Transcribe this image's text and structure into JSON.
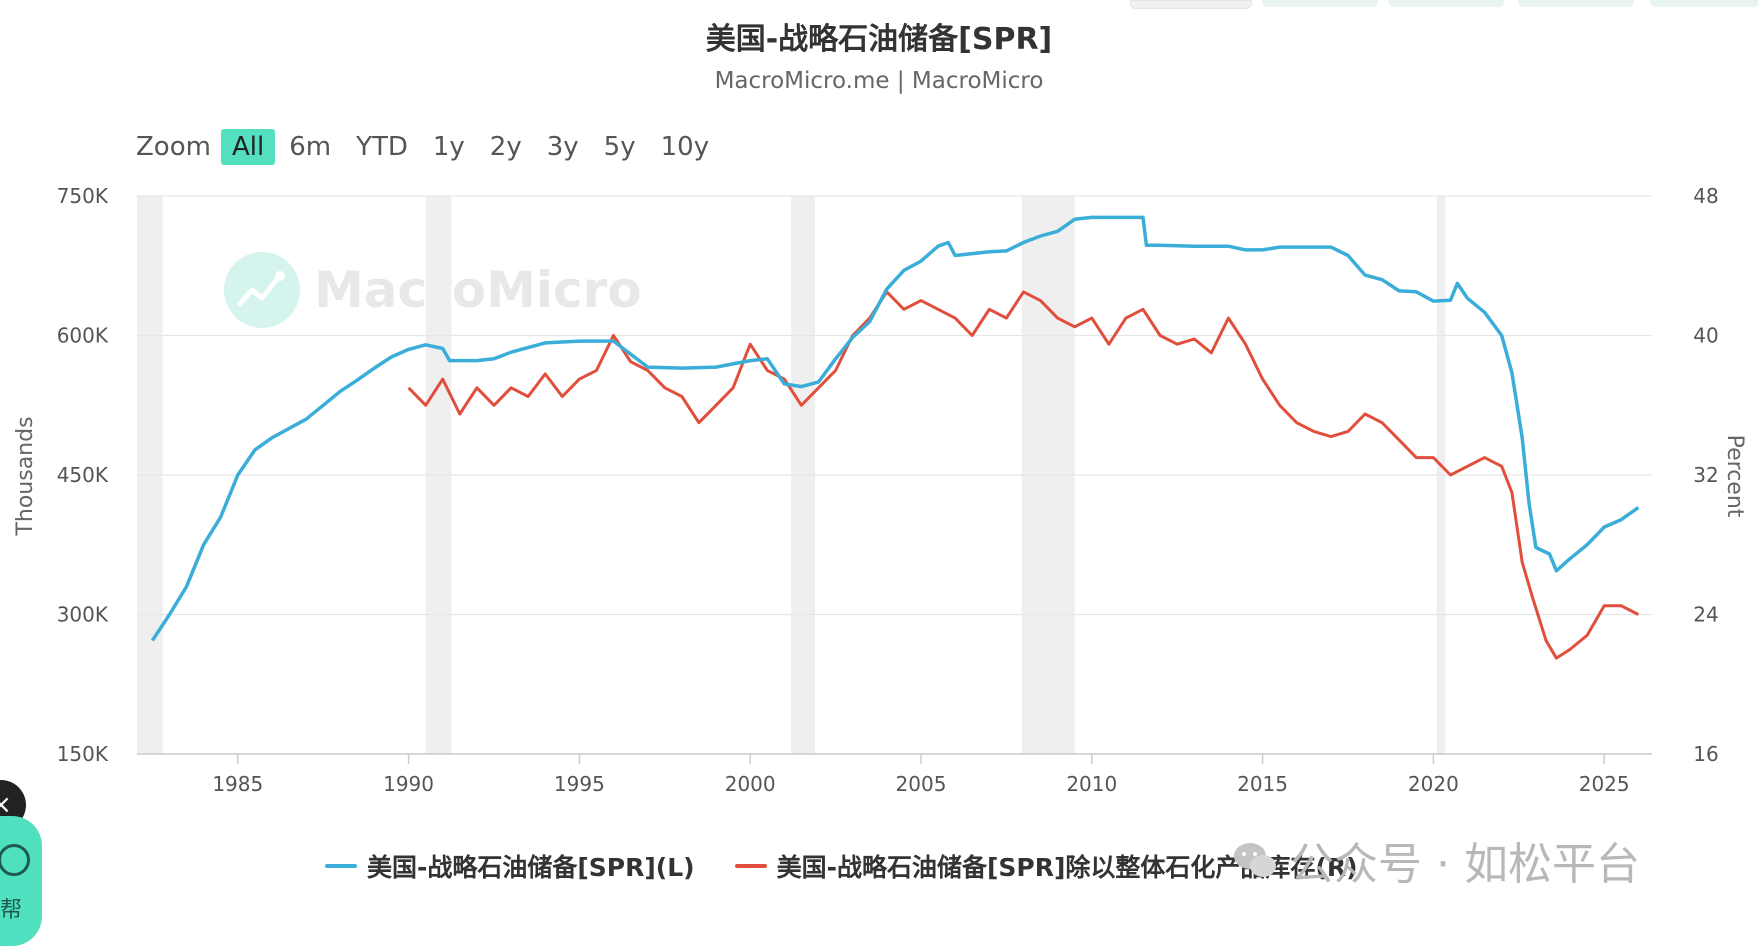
{
  "header": {
    "title": "美国-战略石油储备[SPR]",
    "subtitle": "MacroMicro.me | MacroMicro"
  },
  "zoom": {
    "label": "Zoom",
    "buttons": [
      "All",
      "6m",
      "YTD",
      "1y",
      "2y",
      "3y",
      "5y",
      "10y"
    ],
    "active": "All"
  },
  "watermark": {
    "text": "MacroMicro"
  },
  "wechat": {
    "text": "公众号 · 如松平台"
  },
  "sidebar": {
    "close_label": "×",
    "help_label": "帮"
  },
  "colors": {
    "left_series": "#3aaed8",
    "right_series": "#e14f3c",
    "recession": "#efefef",
    "grid": "#e6e6e6"
  },
  "chart_data": {
    "type": "line",
    "title": "美国-战略石油储备[SPR]",
    "subtitle": "MacroMicro.me | MacroMicro",
    "x_ticks": [
      1985,
      1990,
      1995,
      2000,
      2005,
      2010,
      2015,
      2020,
      2025
    ],
    "xlim": [
      1982.05,
      2026.4
    ],
    "left_axis": {
      "title": "Thousands",
      "ylim": [
        150,
        750
      ],
      "ticks": [
        150,
        300,
        450,
        600,
        750
      ],
      "tick_labels": [
        "150K",
        "300K",
        "450K",
        "600K",
        "750K"
      ]
    },
    "right_axis": {
      "title": "Percent",
      "ylim": [
        16,
        48
      ],
      "ticks": [
        16,
        24,
        32,
        40,
        48
      ],
      "tick_labels": [
        "16",
        "24",
        "32",
        "40",
        "48"
      ]
    },
    "recessions": [
      [
        1982.0,
        1982.8
      ],
      [
        1990.5,
        1991.25
      ],
      [
        2001.2,
        2001.9
      ],
      [
        2007.95,
        2009.5
      ],
      [
        2020.1,
        2020.35
      ]
    ],
    "legend": [
      "美国-战略石油储备[SPR](L)",
      "美国-战略石油储备[SPR]除以整体石化产品库存(R)"
    ],
    "series": [
      {
        "name": "美国-战略石油储备[SPR](L)",
        "axis": "left",
        "points": [
          [
            1982.5,
            272
          ],
          [
            1983,
            300
          ],
          [
            1983.5,
            330
          ],
          [
            1984,
            375
          ],
          [
            1984.5,
            405
          ],
          [
            1985,
            450
          ],
          [
            1985.5,
            477
          ],
          [
            1986,
            490
          ],
          [
            1986.5,
            500
          ],
          [
            1987,
            510
          ],
          [
            1987.5,
            525
          ],
          [
            1988,
            540
          ],
          [
            1988.5,
            552
          ],
          [
            1989,
            565
          ],
          [
            1989.5,
            577
          ],
          [
            1990,
            585
          ],
          [
            1990.5,
            590
          ],
          [
            1991,
            586
          ],
          [
            1991.2,
            573
          ],
          [
            1992,
            573
          ],
          [
            1992.5,
            575
          ],
          [
            1993,
            582
          ],
          [
            1993.5,
            587
          ],
          [
            1994,
            592
          ],
          [
            1995,
            594
          ],
          [
            1996,
            594
          ],
          [
            1996.5,
            580
          ],
          [
            1997,
            566
          ],
          [
            1998,
            565
          ],
          [
            1999,
            566
          ],
          [
            2000,
            573
          ],
          [
            2000.5,
            575
          ],
          [
            2001,
            548
          ],
          [
            2001.5,
            545
          ],
          [
            2002,
            550
          ],
          [
            2002.5,
            575
          ],
          [
            2003,
            598
          ],
          [
            2003.5,
            615
          ],
          [
            2004,
            650
          ],
          [
            2004.5,
            670
          ],
          [
            2005,
            680
          ],
          [
            2005.5,
            696
          ],
          [
            2005.8,
            700
          ],
          [
            2006,
            686
          ],
          [
            2007,
            690
          ],
          [
            2007.5,
            691
          ],
          [
            2008,
            700
          ],
          [
            2008.5,
            707
          ],
          [
            2009,
            712
          ],
          [
            2009.5,
            725
          ],
          [
            2010,
            727
          ],
          [
            2011,
            727
          ],
          [
            2011.5,
            727
          ],
          [
            2011.6,
            697
          ],
          [
            2012,
            697
          ],
          [
            2013,
            696
          ],
          [
            2014,
            696
          ],
          [
            2014.5,
            692
          ],
          [
            2015,
            692
          ],
          [
            2015.5,
            695
          ],
          [
            2016,
            695
          ],
          [
            2017,
            695
          ],
          [
            2017.5,
            686
          ],
          [
            2018,
            665
          ],
          [
            2018.5,
            660
          ],
          [
            2019,
            648
          ],
          [
            2019.5,
            647
          ],
          [
            2020,
            637
          ],
          [
            2020.5,
            638
          ],
          [
            2020.7,
            656
          ],
          [
            2021,
            640
          ],
          [
            2021.5,
            625
          ],
          [
            2022,
            600
          ],
          [
            2022.3,
            560
          ],
          [
            2022.6,
            490
          ],
          [
            2022.8,
            420
          ],
          [
            2023,
            372
          ],
          [
            2023.4,
            365
          ],
          [
            2023.6,
            347
          ],
          [
            2024,
            360
          ],
          [
            2024.5,
            375
          ],
          [
            2025,
            394
          ],
          [
            2025.5,
            402
          ],
          [
            2026,
            415
          ]
        ]
      },
      {
        "name": "美国-战略石油储备[SPR]除以整体石化产品库存(R)",
        "axis": "right",
        "points": [
          [
            1990,
            37.0
          ],
          [
            1990.5,
            36.0
          ],
          [
            1991,
            37.5
          ],
          [
            1991.5,
            35.5
          ],
          [
            1992,
            37.0
          ],
          [
            1992.5,
            36.0
          ],
          [
            1993,
            37.0
          ],
          [
            1993.5,
            36.5
          ],
          [
            1994,
            37.8
          ],
          [
            1994.5,
            36.5
          ],
          [
            1995,
            37.5
          ],
          [
            1995.5,
            38.0
          ],
          [
            1996,
            40.0
          ],
          [
            1996.5,
            38.5
          ],
          [
            1997,
            38.0
          ],
          [
            1997.5,
            37.0
          ],
          [
            1998,
            36.5
          ],
          [
            1998.5,
            35.0
          ],
          [
            1999,
            36.0
          ],
          [
            1999.5,
            37.0
          ],
          [
            2000,
            39.5
          ],
          [
            2000.5,
            38.0
          ],
          [
            2001,
            37.5
          ],
          [
            2001.5,
            36.0
          ],
          [
            2002,
            37.0
          ],
          [
            2002.5,
            38.0
          ],
          [
            2003,
            40.0
          ],
          [
            2003.5,
            41.0
          ],
          [
            2004,
            42.5
          ],
          [
            2004.5,
            41.5
          ],
          [
            2005,
            42.0
          ],
          [
            2005.5,
            41.5
          ],
          [
            2006,
            41.0
          ],
          [
            2006.5,
            40.0
          ],
          [
            2007,
            41.5
          ],
          [
            2007.5,
            41.0
          ],
          [
            2008,
            42.5
          ],
          [
            2008.5,
            42.0
          ],
          [
            2009,
            41.0
          ],
          [
            2009.5,
            40.5
          ],
          [
            2010,
            41.0
          ],
          [
            2010.5,
            39.5
          ],
          [
            2011,
            41.0
          ],
          [
            2011.5,
            41.5
          ],
          [
            2012,
            40.0
          ],
          [
            2012.5,
            39.5
          ],
          [
            2013,
            39.8
          ],
          [
            2013.5,
            39.0
          ],
          [
            2014,
            41.0
          ],
          [
            2014.5,
            39.5
          ],
          [
            2015,
            37.5
          ],
          [
            2015.5,
            36.0
          ],
          [
            2016,
            35.0
          ],
          [
            2016.5,
            34.5
          ],
          [
            2017,
            34.2
          ],
          [
            2017.5,
            34.5
          ],
          [
            2018,
            35.5
          ],
          [
            2018.5,
            35.0
          ],
          [
            2019,
            34.0
          ],
          [
            2019.5,
            33.0
          ],
          [
            2020,
            33.0
          ],
          [
            2020.5,
            32.0
          ],
          [
            2021,
            32.5
          ],
          [
            2021.5,
            33.0
          ],
          [
            2022,
            32.5
          ],
          [
            2022.3,
            31.0
          ],
          [
            2022.6,
            27.0
          ],
          [
            2022.9,
            25.0
          ],
          [
            2023.3,
            22.5
          ],
          [
            2023.6,
            21.5
          ],
          [
            2024,
            22.0
          ],
          [
            2024.5,
            22.8
          ],
          [
            2025,
            24.5
          ],
          [
            2025.5,
            24.5
          ],
          [
            2026,
            24.0
          ]
        ]
      }
    ]
  }
}
